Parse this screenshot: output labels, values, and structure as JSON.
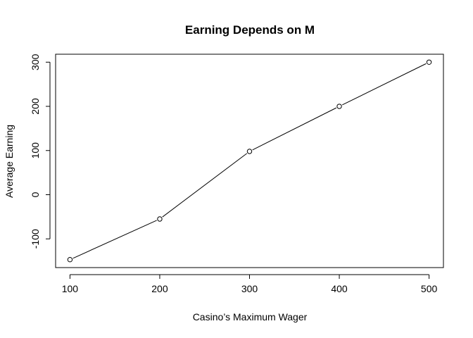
{
  "chart_data": {
    "type": "line",
    "title": "Earning Depends on M",
    "xlabel": "Casino’s Maximum Wager",
    "ylabel": "Average Earning",
    "x": [
      100,
      200,
      300,
      400,
      500
    ],
    "series": [
      {
        "values": [
          -147,
          -55,
          98,
          200,
          300
        ]
      }
    ],
    "xlim": [
      84,
      516
    ],
    "ylim": [
      -165,
      318
    ],
    "xticks": [
      100,
      200,
      300,
      400,
      500
    ],
    "yticks": [
      -100,
      0,
      100,
      200,
      300
    ],
    "xtick_labels": [
      "100",
      "200",
      "300",
      "400",
      "500"
    ],
    "ytick_labels": [
      "-100",
      "0",
      "100",
      "200",
      "300"
    ],
    "grid": false,
    "markers": "open-circle",
    "line_color": "#000000"
  }
}
